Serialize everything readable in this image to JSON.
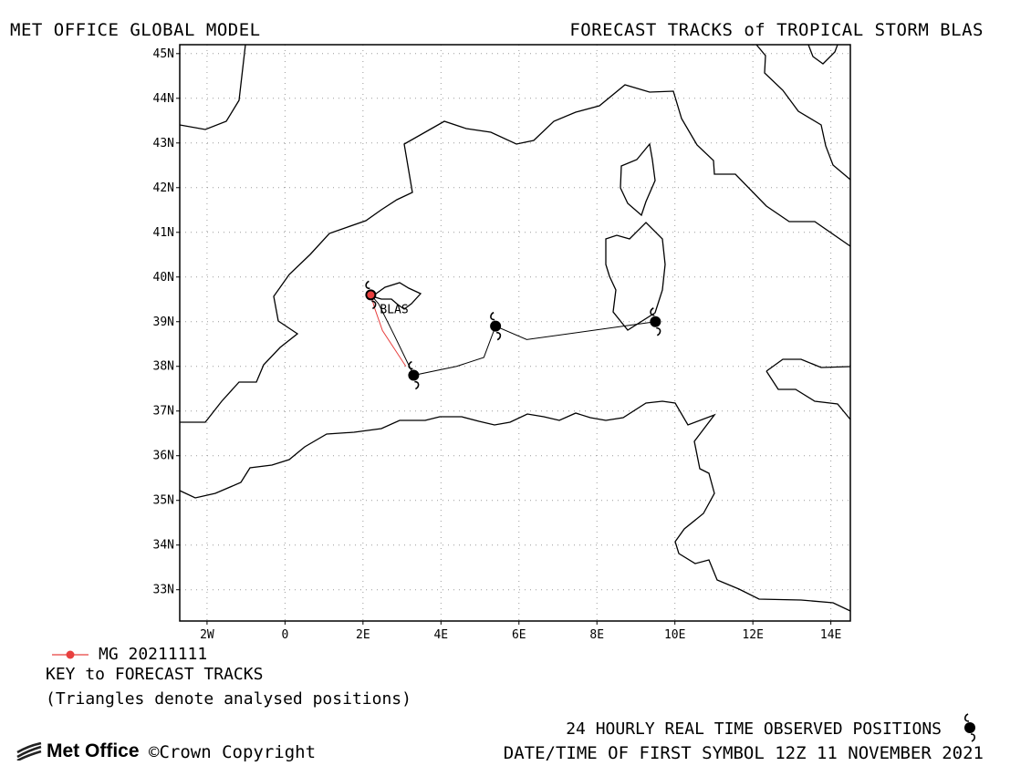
{
  "header": {
    "left_title": "MET OFFICE GLOBAL MODEL",
    "right_title": "FORECAST TRACKS of TROPICAL STORM BLAS"
  },
  "map": {
    "lon_range": [
      -2.7,
      14.5
    ],
    "lat_range": [
      32.3,
      45.2
    ],
    "lat_ticks": [
      "33N",
      "34N",
      "35N",
      "36N",
      "37N",
      "38N",
      "39N",
      "40N",
      "41N",
      "42N",
      "43N",
      "44N",
      "45N"
    ],
    "lon_ticks": [
      "2W",
      "0",
      "2E",
      "4E",
      "6E",
      "8E",
      "10E",
      "12E",
      "14E"
    ],
    "storm_label": "BLAS",
    "colors": {
      "analysis": "#e8403f",
      "forecast": "#000000",
      "coast": "#000000",
      "grid": "#9a9a9a"
    }
  },
  "chart_data": {
    "type": "map",
    "observed_positions": [
      {
        "lon": 2.2,
        "lat": 39.6
      },
      {
        "lon": 3.3,
        "lat": 37.8
      },
      {
        "lon": 5.4,
        "lat": 38.9
      },
      {
        "lon": 9.5,
        "lat": 39.0
      }
    ],
    "forecast_track": [
      {
        "lon": 2.2,
        "lat": 39.6
      },
      {
        "lon": 2.4,
        "lat": 39.4
      },
      {
        "lon": 2.8,
        "lat": 38.7
      },
      {
        "lon": 3.3,
        "lat": 37.8
      },
      {
        "lon": 4.4,
        "lat": 38.0
      },
      {
        "lon": 5.1,
        "lat": 38.2
      },
      {
        "lon": 5.4,
        "lat": 38.9
      },
      {
        "lon": 6.2,
        "lat": 38.6
      },
      {
        "lon": 9.5,
        "lat": 39.0
      }
    ],
    "analysed_track": [
      {
        "lon": 2.2,
        "lat": 39.6
      },
      {
        "lon": 2.3,
        "lat": 39.3
      },
      {
        "lon": 2.5,
        "lat": 38.8
      },
      {
        "lon": 2.8,
        "lat": 38.4
      },
      {
        "lon": 3.1,
        "lat": 38.0
      }
    ]
  },
  "legend": {
    "model_label": "MG 20211111",
    "key_title": "KEY to FORECAST TRACKS",
    "note": "(Triangles denote analysed positions)",
    "observed_label": "24 HOURLY REAL TIME OBSERVED POSITIONS",
    "datetime_label": "DATE/TIME OF FIRST SYMBOL 12Z 11 NOVEMBER 2021",
    "logo_text": "Met Office",
    "copyright": "Crown Copyright",
    "storm_icon": "hurricane-symbol-icon"
  }
}
